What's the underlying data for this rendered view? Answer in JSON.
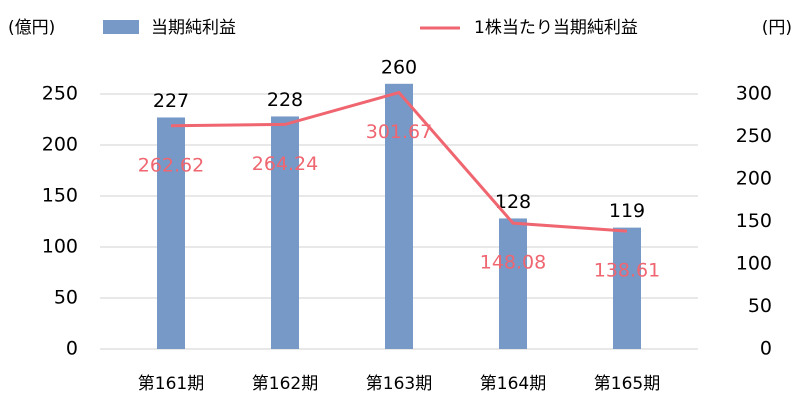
{
  "chart_data": {
    "type": "combo",
    "y_label": "(億円)",
    "y2_label": "(円)",
    "categories": [
      "第161期",
      "第162期",
      "第163期",
      "第164期",
      "第165期"
    ],
    "series": [
      {
        "name": "当期純利益",
        "type": "bar",
        "color": "#7799c8",
        "values": [
          227,
          228,
          260,
          128,
          119
        ],
        "label_color": "#000000"
      },
      {
        "name": "1株当たり当期純利益",
        "type": "line",
        "axis": "y2",
        "color": "#ef6670",
        "values": [
          262.62,
          264.24,
          301.67,
          148.08,
          138.61
        ],
        "label_color": "#ef6670"
      }
    ],
    "ylim": [
      0,
      250
    ],
    "yticks": [
      0,
      50,
      100,
      150,
      200,
      250
    ],
    "y2lim": [
      0,
      300
    ],
    "y2ticks": [
      0,
      50,
      100,
      150,
      200,
      250,
      300
    ],
    "grid": true
  }
}
